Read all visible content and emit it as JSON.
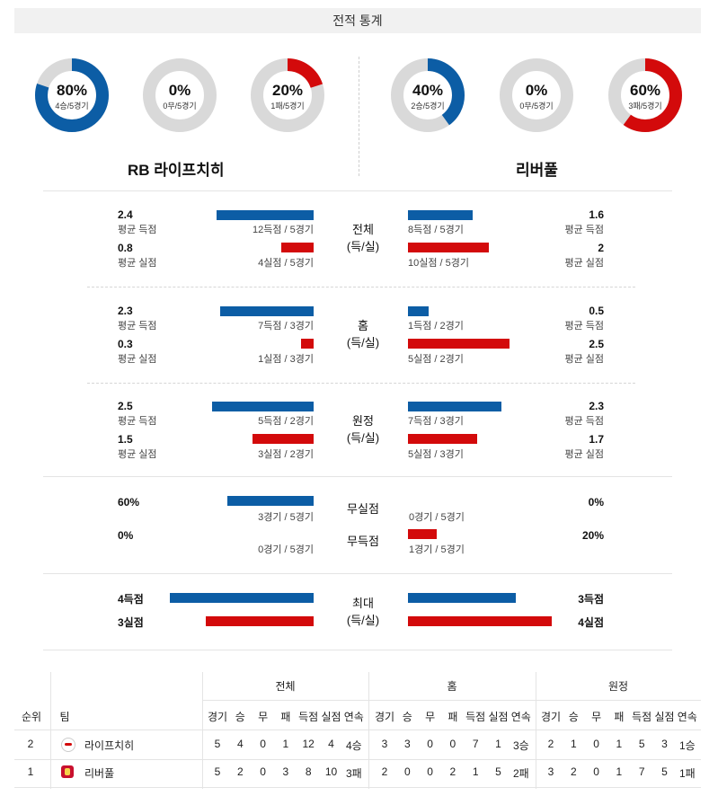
{
  "header": {
    "title": "전적 통계"
  },
  "colors": {
    "blue": "#0c5da5",
    "red": "#d30a0b",
    "track": "#d9d9d9"
  },
  "donuts": {
    "home": [
      {
        "pct": "80%",
        "sub": "4승/5경기",
        "fraction": 0.8,
        "color": "blue"
      },
      {
        "pct": "0%",
        "sub": "0무/5경기",
        "fraction": 0.0,
        "color": "blue"
      },
      {
        "pct": "20%",
        "sub": "1패/5경기",
        "fraction": 0.2,
        "color": "red"
      }
    ],
    "away": [
      {
        "pct": "40%",
        "sub": "2승/5경기",
        "fraction": 0.4,
        "color": "blue"
      },
      {
        "pct": "0%",
        "sub": "0무/5경기",
        "fraction": 0.0,
        "color": "blue"
      },
      {
        "pct": "60%",
        "sub": "3패/5경기",
        "fraction": 0.6,
        "color": "red"
      }
    ]
  },
  "teams": {
    "home": "RB 라이프치히",
    "away": "리버풀"
  },
  "sections": {
    "total": {
      "label1": "전체",
      "label2": "(득/실)",
      "home_scored_val": "2.4",
      "home_scored_lbl": "평균 득점",
      "home_scored_cap": "12득점 / 5경기",
      "home_scored_ratio": 0.6,
      "home_conc_val": "0.8",
      "home_conc_lbl": "평균 실점",
      "home_conc_cap": "4실점 / 5경기",
      "home_conc_ratio": 0.2,
      "away_scored_val": "1.6",
      "away_scored_lbl": "평균 득점",
      "away_scored_cap": "8득점 / 5경기",
      "away_scored_ratio": 0.4,
      "away_conc_val": "2",
      "away_conc_lbl": "평균 실점",
      "away_conc_cap": "10실점 / 5경기",
      "away_conc_ratio": 0.5
    },
    "home": {
      "label1": "홈",
      "label2": "(득/실)",
      "home_scored_val": "2.3",
      "home_scored_lbl": "평균 득점",
      "home_scored_cap": "7득점 / 3경기",
      "home_scored_ratio": 0.58,
      "home_conc_val": "0.3",
      "home_conc_lbl": "평균 실점",
      "home_conc_cap": "1실점 / 3경기",
      "home_conc_ratio": 0.08,
      "away_scored_val": "0.5",
      "away_scored_lbl": "평균 득점",
      "away_scored_cap": "1득점 / 2경기",
      "away_scored_ratio": 0.13,
      "away_conc_val": "2.5",
      "away_conc_lbl": "평균 실점",
      "away_conc_cap": "5실점 / 2경기",
      "away_conc_ratio": 0.63
    },
    "away": {
      "label1": "원정",
      "label2": "(득/실)",
      "home_scored_val": "2.5",
      "home_scored_lbl": "평균 득점",
      "home_scored_cap": "5득점 / 2경기",
      "home_scored_ratio": 0.63,
      "home_conc_val": "1.5",
      "home_conc_lbl": "평균 실점",
      "home_conc_cap": "3실점 / 2경기",
      "home_conc_ratio": 0.38,
      "away_scored_val": "2.3",
      "away_scored_lbl": "평균 득점",
      "away_scored_cap": "7득점 / 3경기",
      "away_scored_ratio": 0.58,
      "away_conc_val": "1.7",
      "away_conc_lbl": "평균 실점",
      "away_conc_cap": "5실점 / 3경기",
      "away_conc_ratio": 0.43
    }
  },
  "clean": {
    "label_cs": "무실점",
    "label_fts": "무득점",
    "home_cs_val": "60%",
    "home_cs_cap": "3경기 / 5경기",
    "home_cs_ratio": 0.6,
    "home_fts_val": "0%",
    "home_fts_cap": "0경기 / 5경기",
    "home_fts_ratio": 0.0,
    "away_cs_val": "0%",
    "away_cs_cap": "0경기 / 5경기",
    "away_cs_ratio": 0.0,
    "away_fts_val": "20%",
    "away_fts_cap": "1경기 / 5경기",
    "away_fts_ratio": 0.2
  },
  "max": {
    "label1": "최대",
    "label2": "(득/실)",
    "home_scored": "4득점",
    "home_scored_ratio": 1.0,
    "home_conc": "3실점",
    "home_conc_ratio": 0.75,
    "away_scored": "3득점",
    "away_scored_ratio": 0.75,
    "away_conc": "4실점",
    "away_conc_ratio": 1.0
  },
  "standings": {
    "groups": [
      "전체",
      "홈",
      "원정"
    ],
    "col_rank": "순위",
    "col_team": "팀",
    "sub_cols": [
      "경기",
      "승",
      "무",
      "패",
      "득점",
      "실점",
      "연속"
    ],
    "rows": [
      {
        "rank": "2",
        "team": "라이프치히",
        "total": [
          "5",
          "4",
          "0",
          "1",
          "12",
          "4",
          "4승"
        ],
        "home": [
          "3",
          "3",
          "0",
          "0",
          "7",
          "1",
          "3승"
        ],
        "away": [
          "2",
          "1",
          "0",
          "1",
          "5",
          "3",
          "1승"
        ]
      },
      {
        "rank": "1",
        "team": "리버풀",
        "total": [
          "5",
          "2",
          "0",
          "3",
          "8",
          "10",
          "3패"
        ],
        "home": [
          "2",
          "0",
          "0",
          "2",
          "1",
          "5",
          "2패"
        ],
        "away": [
          "3",
          "2",
          "0",
          "1",
          "7",
          "5",
          "1패"
        ]
      }
    ]
  }
}
